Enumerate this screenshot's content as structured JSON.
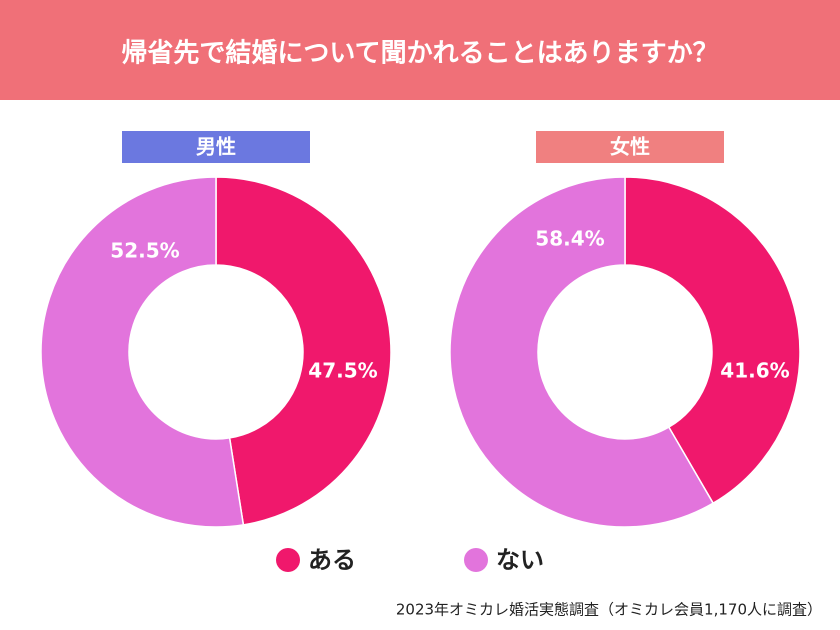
{
  "title": "帰省先で結婚について聞かれることはありますか？",
  "source": "2023年オミカレ婚活実態調査（オミカレ会員1,170人に調査）",
  "chart_data": [
    {
      "type": "pie",
      "title": "男性",
      "title_color": "#6b78e0",
      "categories": [
        "ある",
        "ない"
      ],
      "values": [
        47.5,
        52.5
      ],
      "value_labels": [
        "47.5%",
        "52.5%"
      ],
      "colors": [
        "#f0186c",
        "#e274dc"
      ]
    },
    {
      "type": "pie",
      "title": "女性",
      "title_color": "#f08080",
      "categories": [
        "ある",
        "ない"
      ],
      "values": [
        41.6,
        58.4
      ],
      "value_labels": [
        "41.6%",
        "58.4%"
      ],
      "colors": [
        "#f0186c",
        "#e274dc"
      ]
    }
  ]
}
